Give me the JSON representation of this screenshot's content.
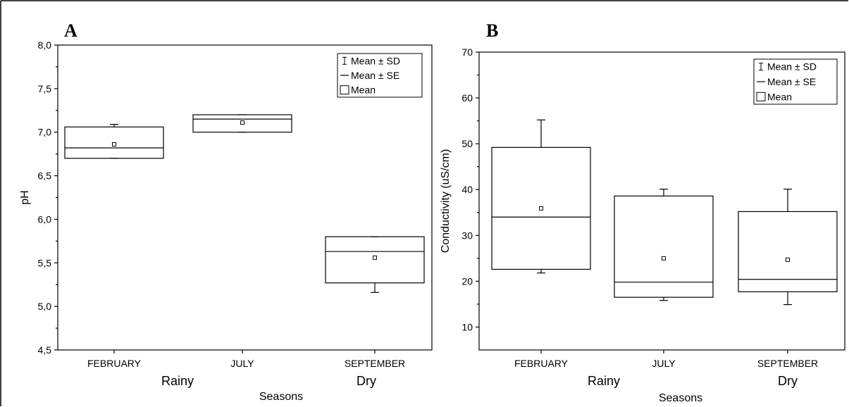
{
  "chart_data": [
    {
      "type": "box",
      "panel_label": "A",
      "ylabel": "pH",
      "xlabel": "Seasons",
      "ylim": [
        4.5,
        8.0
      ],
      "yticks": [
        "4,5",
        "5,0",
        "5,5",
        "6,0",
        "6,5",
        "7,0",
        "7,5",
        "8,0"
      ],
      "categories": [
        "FEBRUARY",
        "JULY",
        "SEPTEMBER"
      ],
      "season_groups": [
        "Rainy",
        "Dry"
      ],
      "legend": {
        "position": "top-right",
        "entries": [
          "Mean ± SD",
          "Mean ± SE",
          "Mean"
        ]
      },
      "boxes": [
        {
          "category": "FEBRUARY",
          "box_low": 6.7,
          "median": 6.82,
          "box_high": 7.06,
          "whisker_low": 6.7,
          "whisker_high": 7.09,
          "mean": 6.86
        },
        {
          "category": "JULY",
          "box_low": 7.0,
          "median": 7.15,
          "box_high": 7.2,
          "whisker_low": 7.0,
          "whisker_high": 7.2,
          "mean": 7.11
        },
        {
          "category": "SEPTEMBER",
          "box_low": 5.27,
          "median": 5.63,
          "box_high": 5.8,
          "whisker_low": 5.16,
          "whisker_high": 5.8,
          "mean": 5.56
        }
      ]
    },
    {
      "type": "box",
      "panel_label": "B",
      "ylabel": "Conductivity (uS/cm)",
      "xlabel": "Seasons",
      "ylim": [
        5,
        70
      ],
      "yticks": [
        "10",
        "20",
        "30",
        "40",
        "50",
        "60",
        "70"
      ],
      "categories": [
        "FEBRUARY",
        "JULY",
        "SEPTEMBER"
      ],
      "season_groups": [
        "Rainy",
        "Dry"
      ],
      "legend": {
        "position": "top-right",
        "entries": [
          "Mean ± SD",
          "Mean ± SE",
          "Mean"
        ]
      },
      "boxes": [
        {
          "category": "FEBRUARY",
          "box_low": 22.6,
          "median": 34.0,
          "box_high": 49.2,
          "whisker_low": 21.8,
          "whisker_high": 55.2,
          "mean": 35.9
        },
        {
          "category": "JULY",
          "box_low": 16.5,
          "median": 19.8,
          "box_high": 38.6,
          "whisker_low": 15.8,
          "whisker_high": 40.1,
          "mean": 25.0
        },
        {
          "category": "SEPTEMBER",
          "box_low": 17.7,
          "median": 20.4,
          "box_high": 35.2,
          "whisker_low": 14.9,
          "whisker_high": 40.1,
          "mean": 24.7
        }
      ]
    }
  ],
  "colors": {
    "line": "#000000",
    "background": "#ffffff"
  }
}
